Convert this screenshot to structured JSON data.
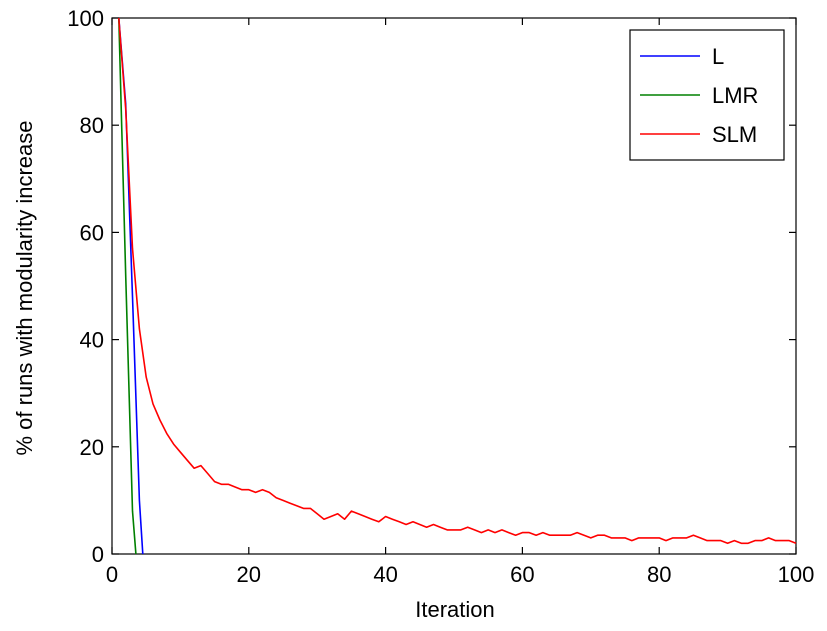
{
  "chart_data": {
    "type": "line",
    "title": "",
    "xlabel": "Iteration",
    "ylabel": "% of runs with modularity increase",
    "xlim": [
      0,
      100
    ],
    "ylim": [
      0,
      100
    ],
    "xticks": [
      "0",
      "20",
      "40",
      "60",
      "80",
      "100"
    ],
    "yticks": [
      "0",
      "20",
      "40",
      "60",
      "80",
      "100"
    ],
    "grid": false,
    "legend_position": "top-right",
    "series": [
      {
        "name": "L",
        "color": "#0000ff",
        "x": [
          1,
          2,
          3,
          4,
          4.5
        ],
        "y": [
          100,
          84,
          48,
          10,
          0
        ]
      },
      {
        "name": "LMR",
        "color": "#008000",
        "x": [
          1,
          2,
          3,
          3.5
        ],
        "y": [
          100,
          52,
          8,
          0
        ]
      },
      {
        "name": "SLM",
        "color": "#ff0000",
        "x": [
          1,
          2,
          3,
          4,
          5,
          6,
          7,
          8,
          9,
          10,
          11,
          12,
          13,
          14,
          15,
          16,
          17,
          18,
          19,
          20,
          21,
          22,
          23,
          24,
          25,
          26,
          27,
          28,
          29,
          30,
          31,
          32,
          33,
          34,
          35,
          36,
          37,
          38,
          39,
          40,
          41,
          42,
          43,
          44,
          45,
          46,
          47,
          48,
          49,
          50,
          51,
          52,
          53,
          54,
          55,
          56,
          57,
          58,
          59,
          60,
          61,
          62,
          63,
          64,
          65,
          66,
          67,
          68,
          69,
          70,
          71,
          72,
          73,
          74,
          75,
          76,
          77,
          78,
          79,
          80,
          81,
          82,
          83,
          84,
          85,
          86,
          87,
          88,
          89,
          90,
          91,
          92,
          93,
          94,
          95,
          96,
          97,
          98,
          99,
          100
        ],
        "y": [
          100,
          83,
          57,
          42,
          33,
          28,
          25,
          22.5,
          20.5,
          19,
          17.5,
          16,
          16.5,
          15,
          13.5,
          13,
          13,
          12.5,
          12,
          12,
          11.5,
          12,
          11.5,
          10.5,
          10,
          9.5,
          9,
          8.5,
          8.5,
          7.5,
          6.5,
          7,
          7.5,
          6.5,
          8,
          7.5,
          7,
          6.5,
          6,
          7,
          6.5,
          6,
          5.5,
          6,
          5.5,
          5,
          5.5,
          5,
          4.5,
          4.5,
          4.5,
          5,
          4.5,
          4,
          4.5,
          4,
          4.5,
          4,
          3.5,
          4,
          4,
          3.5,
          4,
          3.5,
          3.5,
          3.5,
          3.5,
          4,
          3.5,
          3,
          3.5,
          3.5,
          3,
          3,
          3,
          2.5,
          3,
          3,
          3,
          3,
          2.5,
          3,
          3,
          3,
          3.5,
          3,
          2.5,
          2.5,
          2.5,
          2,
          2.5,
          2,
          2,
          2.5,
          2.5,
          3,
          2.5,
          2.5,
          2.5,
          2
        ]
      }
    ]
  }
}
